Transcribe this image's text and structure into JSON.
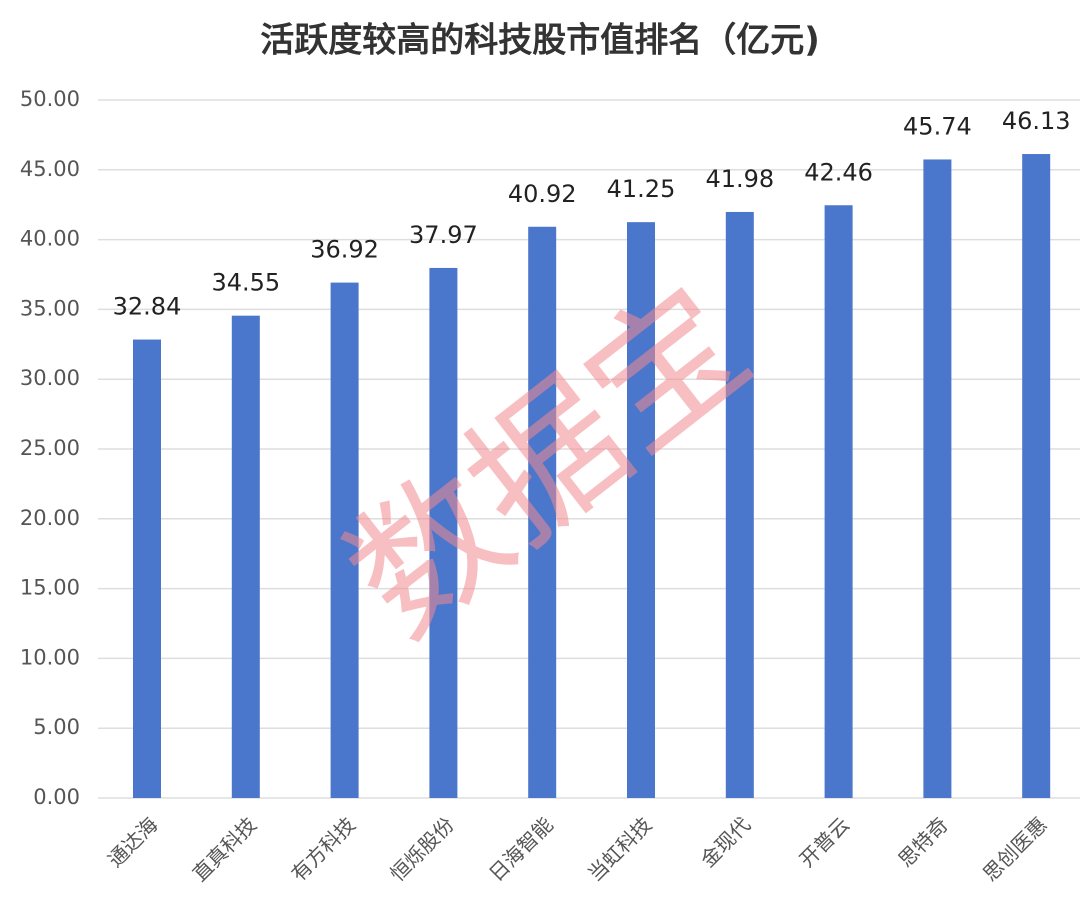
{
  "chart_data": {
    "type": "bar",
    "title": "活跃度较高的科技股市值排名（亿元)",
    "watermark": "数据宝",
    "categories": [
      "通达海",
      "直真科技",
      "有方科技",
      "恒烁股份",
      "日海智能",
      "当虹科技",
      "金现代",
      "开普云",
      "思特奇",
      "思创医惠"
    ],
    "values": [
      32.84,
      34.55,
      36.92,
      37.97,
      40.92,
      41.25,
      41.98,
      42.46,
      45.74,
      46.13
    ],
    "color": "#4a76cc",
    "ylim": [
      0,
      50
    ],
    "yticks": [
      {
        "value": 0,
        "label": "0.00"
      },
      {
        "value": 5,
        "label": "5.00"
      },
      {
        "value": 10,
        "label": "10.00"
      },
      {
        "value": 15,
        "label": "15.00"
      },
      {
        "value": 20,
        "label": "20.00"
      },
      {
        "value": 25,
        "label": "25.00"
      },
      {
        "value": 30,
        "label": "30.00"
      },
      {
        "value": 35,
        "label": "35.00"
      },
      {
        "value": 40,
        "label": "40.00"
      },
      {
        "value": 45,
        "label": "45.00"
      },
      {
        "value": 50,
        "label": "50.00"
      }
    ],
    "grid": true
  }
}
